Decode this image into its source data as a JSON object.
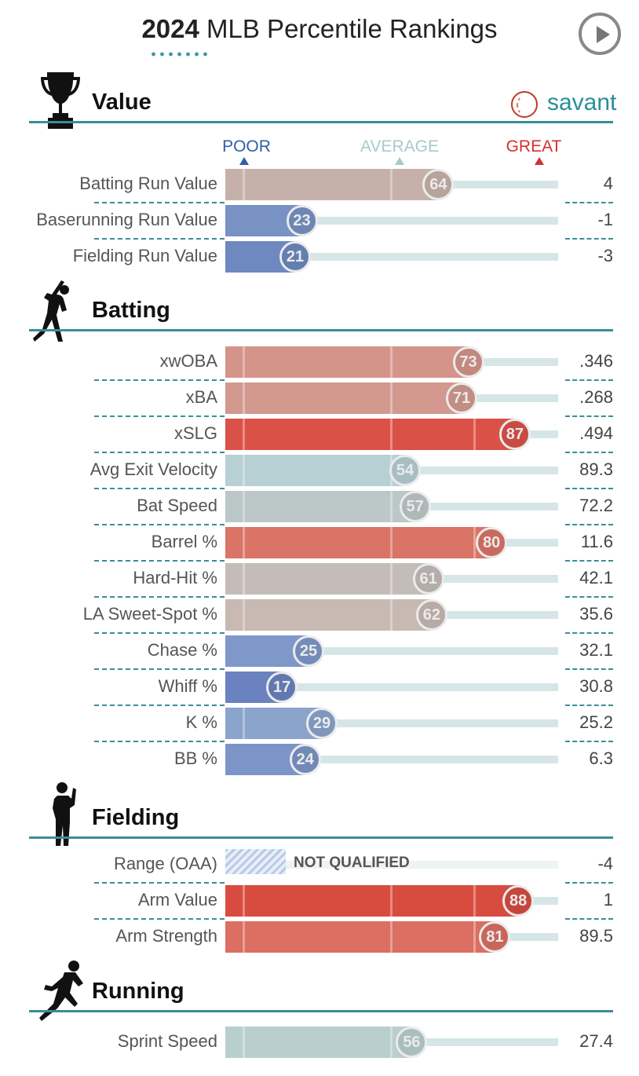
{
  "header": {
    "title_year": "2024",
    "title_rest": "MLB Percentile Rankings",
    "brand": "savant"
  },
  "scale": {
    "poor": "POOR",
    "average": "AVERAGE",
    "great": "GREAT",
    "poor_color": "#2e5fa6",
    "average_color": "#a9c9cb",
    "great_color": "#d62f2f"
  },
  "sections": [
    {
      "title": "Value",
      "icon": "trophy-icon",
      "rows": [
        {
          "label": "Batting Run Value",
          "percentile": 64,
          "stat": "4",
          "color": "#c6b1aa"
        },
        {
          "label": "Baserunning Run Value",
          "percentile": 23,
          "stat": "-1",
          "color": "#7892c4"
        },
        {
          "label": "Fielding Run Value",
          "percentile": 21,
          "stat": "-3",
          "color": "#6e89c0"
        }
      ]
    },
    {
      "title": "Batting",
      "icon": "batter-silhouette-icon",
      "rows": [
        {
          "label": "xwOBA",
          "percentile": 73,
          "stat": ".346",
          "color": "#d5948a"
        },
        {
          "label": "xBA",
          "percentile": 71,
          "stat": ".268",
          "color": "#d3998f"
        },
        {
          "label": "xSLG",
          "percentile": 87,
          "stat": ".494",
          "color": "#da5247"
        },
        {
          "label": "Avg Exit Velocity",
          "percentile": 54,
          "stat": "89.3",
          "color": "#b6d0d3"
        },
        {
          "label": "Bat Speed",
          "percentile": 57,
          "stat": "72.2",
          "color": "#bcc8c7"
        },
        {
          "label": "Barrel %",
          "percentile": 80,
          "stat": "11.6",
          "color": "#d97466"
        },
        {
          "label": "Hard-Hit %",
          "percentile": 61,
          "stat": "42.1",
          "color": "#c4bcb8"
        },
        {
          "label": "LA Sweet-Spot %",
          "percentile": 62,
          "stat": "35.6",
          "color": "#c8b9b3"
        },
        {
          "label": "Chase %",
          "percentile": 25,
          "stat": "32.1",
          "color": "#7e98c9"
        },
        {
          "label": "Whiff %",
          "percentile": 17,
          "stat": "30.8",
          "color": "#6a82c0"
        },
        {
          "label": "K %",
          "percentile": 29,
          "stat": "25.2",
          "color": "#8aa4cc"
        },
        {
          "label": "BB %",
          "percentile": 24,
          "stat": "6.3",
          "color": "#7c95c8"
        }
      ]
    },
    {
      "title": "Fielding",
      "icon": "fielder-silhouette-icon",
      "rows": [
        {
          "label": "Range (OAA)",
          "percentile": null,
          "not_qualified": "NOT QUALIFIED",
          "stat": "-4",
          "color": "#b9c9e6"
        },
        {
          "label": "Arm Value",
          "percentile": 88,
          "stat": "1",
          "color": "#d84c40"
        },
        {
          "label": "Arm Strength",
          "percentile": 81,
          "stat": "89.5",
          "color": "#db6f62"
        }
      ]
    },
    {
      "title": "Running",
      "icon": "runner-silhouette-icon",
      "rows": [
        {
          "label": "Sprint Speed",
          "percentile": 56,
          "stat": "27.4",
          "color": "#b8cfcd"
        }
      ]
    }
  ],
  "chart_data": {
    "type": "bar",
    "title": "2024 MLB Percentile Rankings",
    "xlim": [
      0,
      100
    ],
    "categories": [
      "Batting Run Value",
      "Baserunning Run Value",
      "Fielding Run Value",
      "xwOBA",
      "xBA",
      "xSLG",
      "Avg Exit Velocity",
      "Bat Speed",
      "Barrel %",
      "Hard-Hit %",
      "LA Sweet-Spot %",
      "Chase %",
      "Whiff %",
      "K %",
      "BB %",
      "Range (OAA)",
      "Arm Value",
      "Arm Strength",
      "Sprint Speed"
    ],
    "values": [
      64,
      23,
      21,
      73,
      71,
      87,
      54,
      57,
      80,
      61,
      62,
      25,
      17,
      29,
      24,
      null,
      88,
      81,
      56
    ],
    "stats": [
      "4",
      "-1",
      "-3",
      ".346",
      ".268",
      ".494",
      "89.3",
      "72.2",
      "11.6",
      "42.1",
      "35.6",
      "32.1",
      "30.8",
      "25.2",
      "6.3",
      "-4",
      "1",
      "89.5",
      "27.4"
    ]
  }
}
